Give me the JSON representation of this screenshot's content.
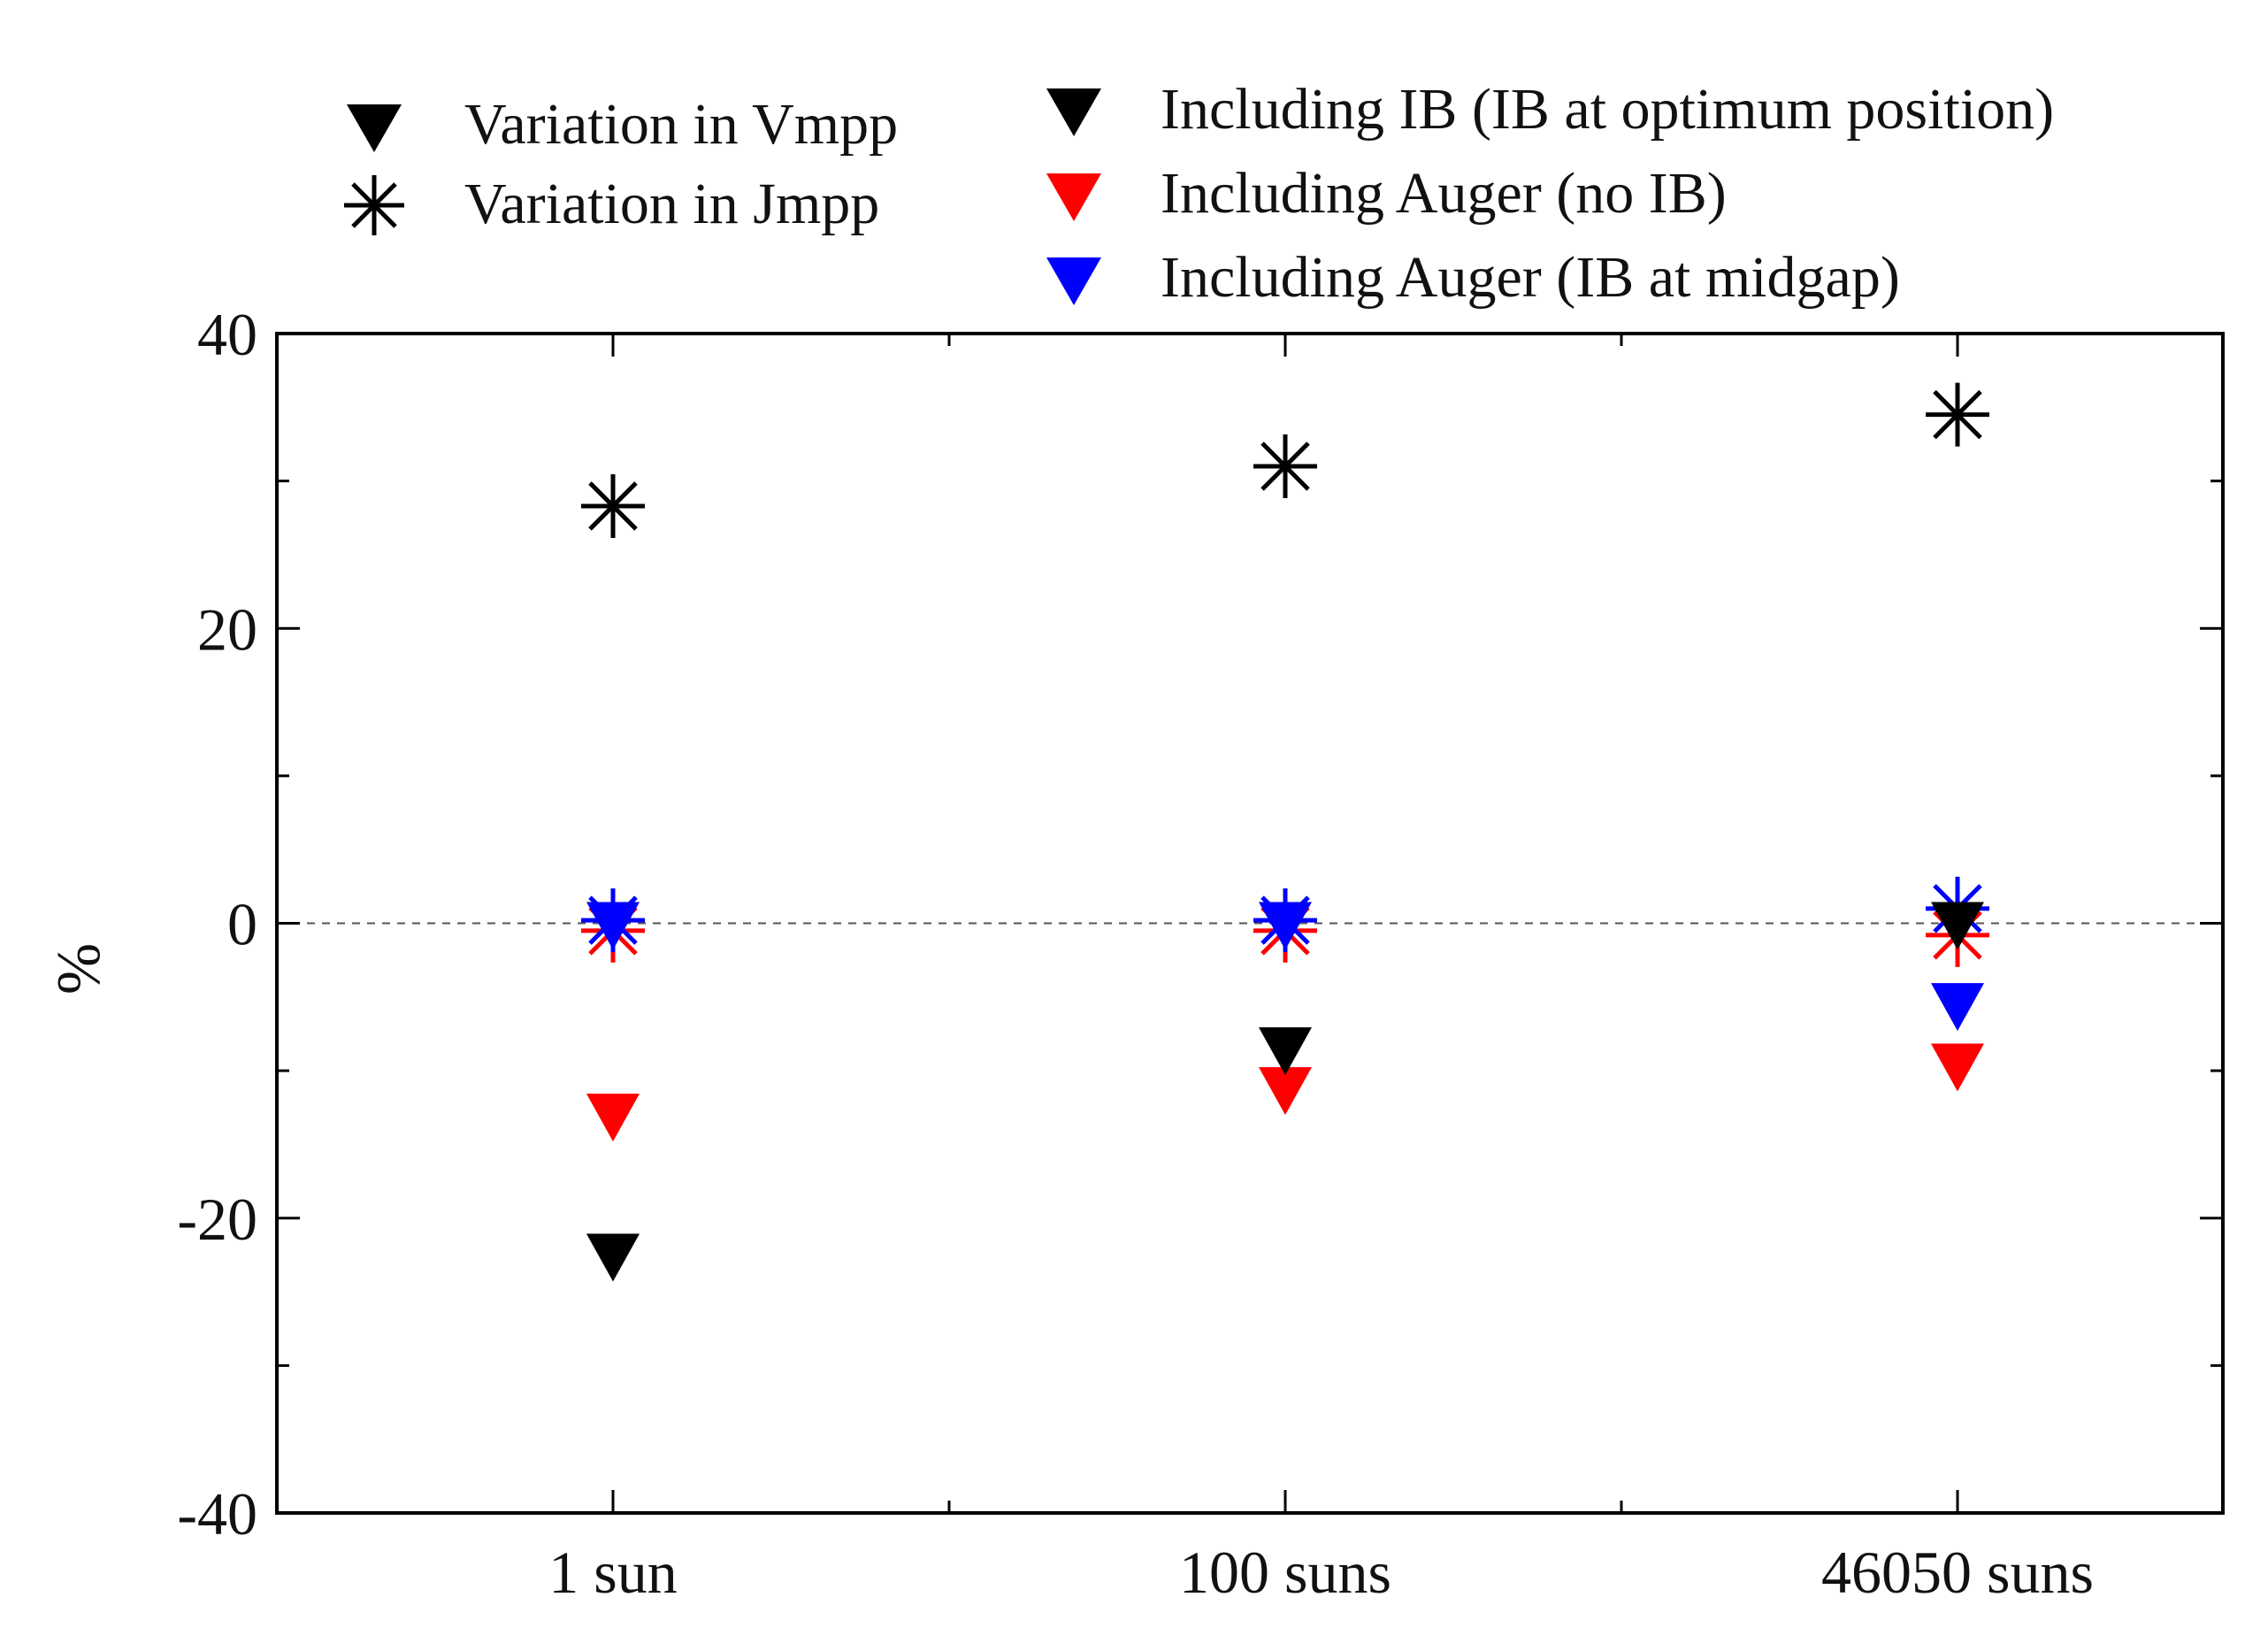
{
  "chart_data": {
    "type": "scatter",
    "title": "",
    "xlabel": "",
    "ylabel": "%",
    "categories": [
      "1 sun",
      "100 suns",
      "46050 suns"
    ],
    "ylim": [
      -40,
      40
    ],
    "yticks": [
      -40,
      -20,
      0,
      20,
      40
    ],
    "y_minor_step": 10,
    "zero_line": true,
    "grid": false,
    "legend_position": "top",
    "series": [
      {
        "name": "Including IB (IB at optimum position)",
        "color": "#000000",
        "vmpp": [
          -22.5,
          -8.5,
          0.0
        ],
        "jmpp": [
          28.3,
          31.0,
          34.5
        ]
      },
      {
        "name": "Including Auger (no IB)",
        "color": "#ff0000",
        "vmpp": [
          -13.0,
          -11.2,
          -9.6
        ],
        "jmpp": [
          -0.5,
          -0.5,
          -0.8
        ]
      },
      {
        "name": "Including Auger (IB at midgap)",
        "color": "#0000ff",
        "vmpp": [
          0.0,
          0.0,
          -5.5
        ],
        "jmpp": [
          0.2,
          0.2,
          1.0
        ]
      }
    ],
    "legend": {
      "marker_types": [
        {
          "label": "Variation in Vmpp",
          "marker": "triangle-down-icon",
          "color": "#000000"
        },
        {
          "label": "Variation in Jmpp",
          "marker": "asterisk-icon",
          "color": "#000000"
        }
      ],
      "series_entries": [
        {
          "label": "Including IB (IB at optimum position)",
          "marker": "triangle-down-icon",
          "color": "#000000"
        },
        {
          "label": "Including Auger (no IB)",
          "marker": "triangle-down-icon",
          "color": "#ff0000"
        },
        {
          "label": "Including Auger (IB at midgap)",
          "marker": "triangle-down-icon",
          "color": "#0000ff"
        }
      ]
    }
  }
}
